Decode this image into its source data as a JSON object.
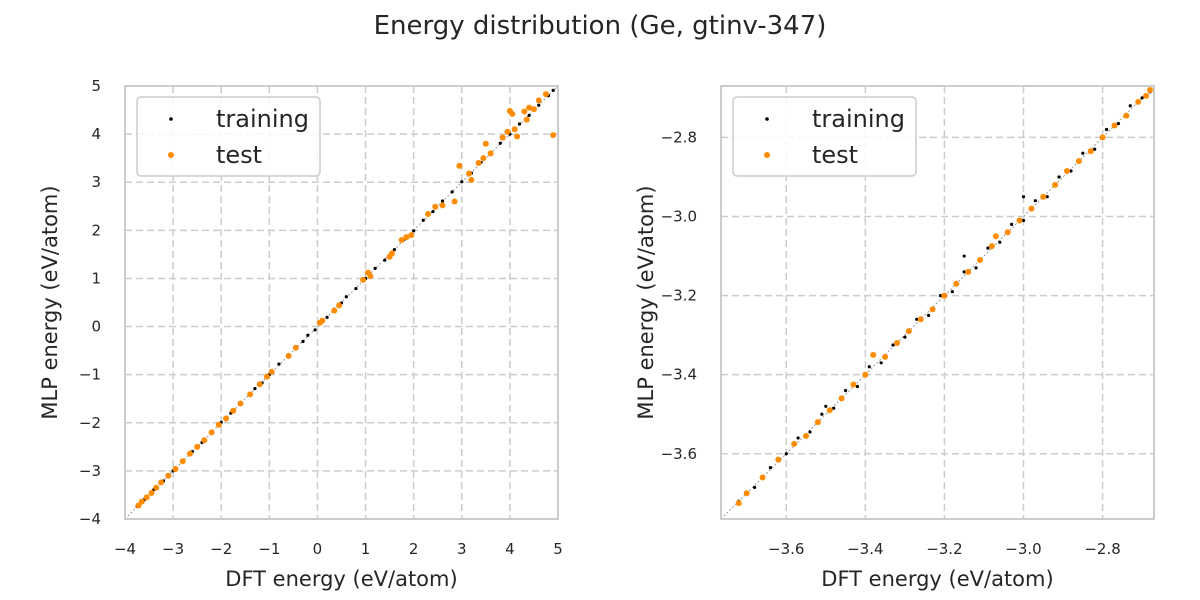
{
  "figure": {
    "title": "Energy distribution (Ge, gtinv-347)"
  },
  "chart_data": [
    {
      "type": "scatter",
      "title": "",
      "xlabel": "DFT energy (eV/atom)",
      "ylabel": "MLP energy (eV/atom)",
      "xlim": [
        -4,
        5
      ],
      "ylim": [
        -4,
        5
      ],
      "xticks": [
        -4,
        -3,
        -2,
        -1,
        0,
        1,
        2,
        3,
        4,
        5
      ],
      "yticks": [
        -4,
        -3,
        -2,
        -1,
        0,
        1,
        2,
        3,
        4,
        5
      ],
      "xtick_labels": [
        "−4",
        "−3",
        "−2",
        "−1",
        "0",
        "1",
        "2",
        "3",
        "4",
        "5"
      ],
      "ytick_labels": [
        "−4",
        "−3",
        "−2",
        "−1",
        "0",
        "1",
        "2",
        "3",
        "4",
        "5"
      ],
      "grid": true,
      "diagonal_reference": true,
      "legend_position": "top-left",
      "series": [
        {
          "name": "training",
          "color": "#000000",
          "points": [
            [
              -3.75,
              -3.74
            ],
            [
              -3.6,
              -3.6
            ],
            [
              -3.4,
              -3.39
            ],
            [
              -3.2,
              -3.21
            ],
            [
              -3.0,
              -3.0
            ],
            [
              -2.8,
              -2.79
            ],
            [
              -2.6,
              -2.6
            ],
            [
              -2.4,
              -2.41
            ],
            [
              -2.2,
              -2.2
            ],
            [
              -2.0,
              -1.99
            ],
            [
              -1.8,
              -1.8
            ],
            [
              -1.6,
              -1.61
            ],
            [
              -1.4,
              -1.4
            ],
            [
              -1.3,
              -1.29
            ],
            [
              -1.15,
              -1.17
            ],
            [
              -1.0,
              -1.0
            ],
            [
              -0.8,
              -0.78
            ],
            [
              -0.6,
              -0.62
            ],
            [
              -0.45,
              -0.45
            ],
            [
              -0.3,
              -0.31
            ],
            [
              -0.2,
              -0.18
            ],
            [
              -0.05,
              -0.07
            ],
            [
              0.05,
              0.06
            ],
            [
              0.2,
              0.19
            ],
            [
              0.35,
              0.36
            ],
            [
              0.5,
              0.49
            ],
            [
              0.6,
              0.62
            ],
            [
              0.8,
              0.79
            ],
            [
              1.0,
              1.0
            ],
            [
              1.2,
              1.21
            ],
            [
              1.4,
              1.38
            ],
            [
              1.6,
              1.6
            ],
            [
              1.8,
              1.81
            ],
            [
              2.0,
              1.99
            ],
            [
              2.2,
              2.21
            ],
            [
              2.4,
              2.39
            ],
            [
              2.6,
              2.61
            ],
            [
              2.8,
              2.8
            ],
            [
              3.0,
              3.01
            ],
            [
              3.2,
              3.19
            ],
            [
              3.4,
              3.41
            ],
            [
              3.6,
              3.59
            ],
            [
              3.8,
              3.81
            ],
            [
              4.0,
              4.0
            ],
            [
              4.2,
              4.21
            ],
            [
              4.4,
              4.39
            ],
            [
              4.6,
              4.6
            ],
            [
              4.8,
              4.8
            ],
            [
              4.9,
              4.91
            ]
          ]
        },
        {
          "name": "test",
          "color": "#ff8c00",
          "points": [
            [
              -3.72,
              -3.72
            ],
            [
              -3.65,
              -3.64
            ],
            [
              -3.55,
              -3.55
            ],
            [
              -3.45,
              -3.46
            ],
            [
              -3.35,
              -3.35
            ],
            [
              -3.25,
              -3.24
            ],
            [
              -3.1,
              -3.1
            ],
            [
              -2.95,
              -2.96
            ],
            [
              -2.8,
              -2.8
            ],
            [
              -2.65,
              -2.64
            ],
            [
              -2.5,
              -2.5
            ],
            [
              -2.35,
              -2.36
            ],
            [
              -2.2,
              -2.2
            ],
            [
              -2.05,
              -2.04
            ],
            [
              -1.9,
              -1.91
            ],
            [
              -1.75,
              -1.75
            ],
            [
              -1.6,
              -1.6
            ],
            [
              -1.4,
              -1.41
            ],
            [
              -1.2,
              -1.2
            ],
            [
              -1.05,
              -1.04
            ],
            [
              -0.95,
              -0.94
            ],
            [
              -0.6,
              -0.61
            ],
            [
              -0.45,
              -0.44
            ],
            [
              0.05,
              0.08
            ],
            [
              0.1,
              0.12
            ],
            [
              0.35,
              0.33
            ],
            [
              0.45,
              0.44
            ],
            [
              0.95,
              0.97
            ],
            [
              1.05,
              1.12
            ],
            [
              1.1,
              1.05
            ],
            [
              1.5,
              1.45
            ],
            [
              1.55,
              1.52
            ],
            [
              1.75,
              1.8
            ],
            [
              1.85,
              1.86
            ],
            [
              1.95,
              1.9
            ],
            [
              2.3,
              2.34
            ],
            [
              2.45,
              2.49
            ],
            [
              2.6,
              2.52
            ],
            [
              2.85,
              2.6
            ],
            [
              2.95,
              3.34
            ],
            [
              3.15,
              3.18
            ],
            [
              3.2,
              3.05
            ],
            [
              3.35,
              3.4
            ],
            [
              3.45,
              3.5
            ],
            [
              3.5,
              3.8
            ],
            [
              3.6,
              3.6
            ],
            [
              3.85,
              3.93
            ],
            [
              3.95,
              4.05
            ],
            [
              4.0,
              4.48
            ],
            [
              4.05,
              4.42
            ],
            [
              4.1,
              4.1
            ],
            [
              4.15,
              3.95
            ],
            [
              4.3,
              4.47
            ],
            [
              4.35,
              4.3
            ],
            [
              4.4,
              4.55
            ],
            [
              4.5,
              4.52
            ],
            [
              4.6,
              4.7
            ],
            [
              4.75,
              4.83
            ],
            [
              4.9,
              3.98
            ]
          ]
        }
      ]
    },
    {
      "type": "scatter",
      "title": "",
      "xlabel": "DFT energy (eV/atom)",
      "ylabel": "MLP energy (eV/atom)",
      "xlim": [
        -3.765,
        -2.67
      ],
      "ylim": [
        -3.765,
        -2.67
      ],
      "xticks": [
        -3.6,
        -3.4,
        -3.2,
        -3.0,
        -2.8
      ],
      "yticks": [
        -3.6,
        -3.4,
        -3.2,
        -3.0,
        -2.8
      ],
      "xtick_labels": [
        "−3.6",
        "−3.4",
        "−3.2",
        "−3.0",
        "−2.8"
      ],
      "ytick_labels": [
        "−3.6",
        "−3.4",
        "−3.2",
        "−3.0",
        "−2.8"
      ],
      "grid": true,
      "diagonal_reference": true,
      "legend_position": "top-left",
      "series": [
        {
          "name": "training",
          "color": "#000000",
          "points": [
            [
              -3.72,
              -3.72
            ],
            [
              -3.68,
              -3.685
            ],
            [
              -3.64,
              -3.635
            ],
            [
              -3.6,
              -3.6
            ],
            [
              -3.57,
              -3.56
            ],
            [
              -3.54,
              -3.545
            ],
            [
              -3.51,
              -3.5
            ],
            [
              -3.48,
              -3.485
            ],
            [
              -3.45,
              -3.44
            ],
            [
              -3.42,
              -3.43
            ],
            [
              -3.39,
              -3.38
            ],
            [
              -3.36,
              -3.37
            ],
            [
              -3.33,
              -3.325
            ],
            [
              -3.3,
              -3.305
            ],
            [
              -3.27,
              -3.26
            ],
            [
              -3.24,
              -3.25
            ],
            [
              -3.21,
              -3.2
            ],
            [
              -3.18,
              -3.19
            ],
            [
              -3.15,
              -3.14
            ],
            [
              -3.12,
              -3.13
            ],
            [
              -3.09,
              -3.08
            ],
            [
              -3.06,
              -3.065
            ],
            [
              -3.03,
              -3.02
            ],
            [
              -3.0,
              -3.01
            ],
            [
              -2.97,
              -2.96
            ],
            [
              -2.94,
              -2.95
            ],
            [
              -2.91,
              -2.9
            ],
            [
              -2.88,
              -2.885
            ],
            [
              -2.85,
              -2.84
            ],
            [
              -2.82,
              -2.83
            ],
            [
              -2.79,
              -2.78
            ],
            [
              -2.76,
              -2.765
            ],
            [
              -2.73,
              -2.72
            ],
            [
              -2.7,
              -2.7
            ],
            [
              -2.68,
              -2.685
            ],
            [
              -3.0,
              -2.95
            ],
            [
              -3.15,
              -3.1
            ],
            [
              -3.5,
              -3.48
            ]
          ]
        },
        {
          "name": "test",
          "color": "#ff8c00",
          "points": [
            [
              -3.72,
              -3.725
            ],
            [
              -3.7,
              -3.7
            ],
            [
              -3.66,
              -3.66
            ],
            [
              -3.62,
              -3.615
            ],
            [
              -3.58,
              -3.575
            ],
            [
              -3.55,
              -3.555
            ],
            [
              -3.52,
              -3.52
            ],
            [
              -3.49,
              -3.49
            ],
            [
              -3.46,
              -3.46
            ],
            [
              -3.43,
              -3.425
            ],
            [
              -3.4,
              -3.4
            ],
            [
              -3.38,
              -3.35
            ],
            [
              -3.35,
              -3.355
            ],
            [
              -3.32,
              -3.32
            ],
            [
              -3.29,
              -3.29
            ],
            [
              -3.26,
              -3.26
            ],
            [
              -3.23,
              -3.235
            ],
            [
              -3.2,
              -3.2
            ],
            [
              -3.17,
              -3.17
            ],
            [
              -3.14,
              -3.14
            ],
            [
              -3.11,
              -3.11
            ],
            [
              -3.08,
              -3.075
            ],
            [
              -3.07,
              -3.05
            ],
            [
              -3.04,
              -3.04
            ],
            [
              -3.01,
              -3.01
            ],
            [
              -2.98,
              -2.98
            ],
            [
              -2.95,
              -2.95
            ],
            [
              -2.92,
              -2.92
            ],
            [
              -2.89,
              -2.885
            ],
            [
              -2.86,
              -2.86
            ],
            [
              -2.83,
              -2.835
            ],
            [
              -2.8,
              -2.8
            ],
            [
              -2.77,
              -2.77
            ],
            [
              -2.74,
              -2.745
            ],
            [
              -2.71,
              -2.71
            ],
            [
              -2.69,
              -2.695
            ],
            [
              -2.68,
              -2.68
            ]
          ]
        }
      ]
    }
  ]
}
